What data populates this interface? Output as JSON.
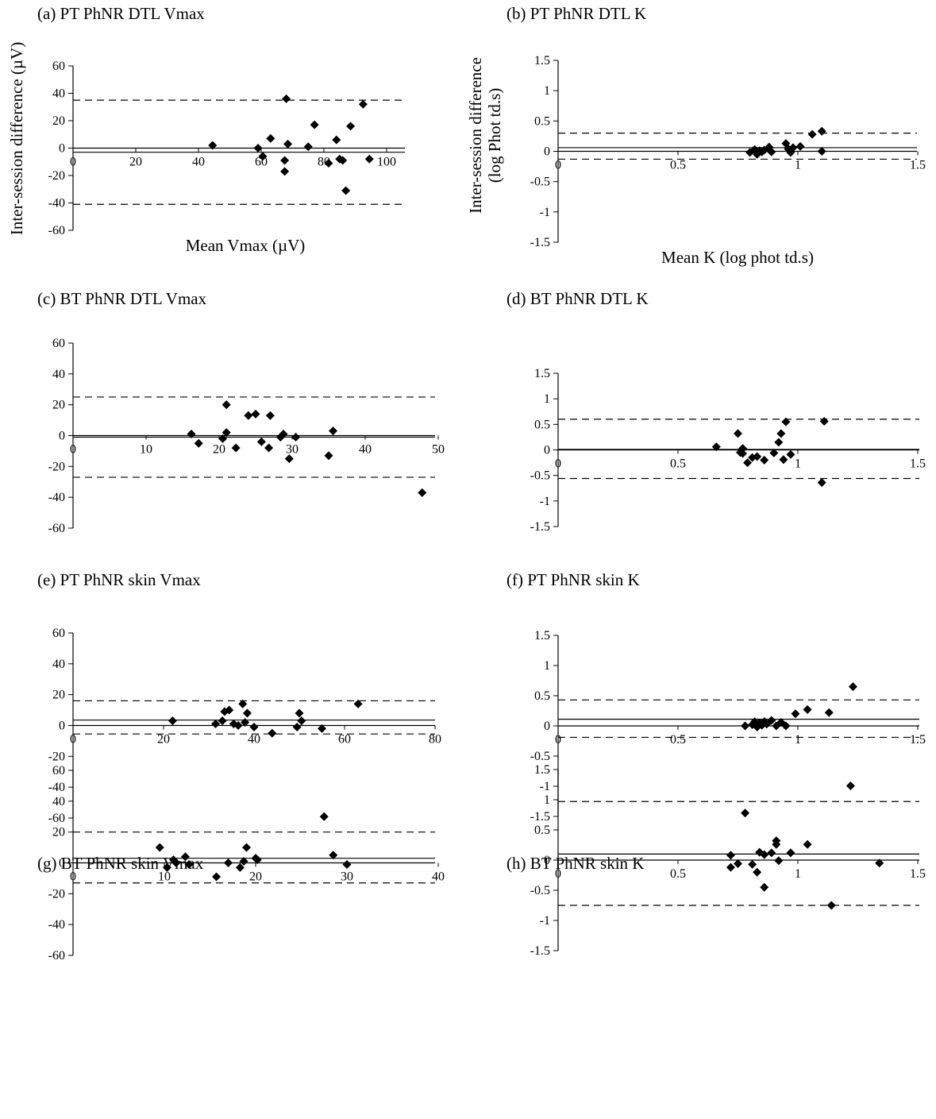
{
  "chart_data": [
    {
      "id": "a",
      "type": "scatter",
      "title": "(a) PT PhNR DTL Vmax",
      "xlabel": "Mean Vmax (µV)",
      "ylabel": "Inter-session difference (µV)",
      "xlim": [
        0,
        110
      ],
      "ylim": [
        -60,
        60
      ],
      "xticks": [
        0,
        20,
        40,
        60,
        80,
        100
      ],
      "yticks": [
        -60,
        -40,
        -20,
        0,
        20,
        40,
        60
      ],
      "x_tick_labels": [
        "0",
        "20",
        "40",
        "60",
        "80",
        "100"
      ],
      "y_tick_labels": [
        "-60",
        "-40",
        "-20",
        "0",
        "20",
        "40",
        "60"
      ],
      "mean_difference": -3,
      "limits_of_agreement": [
        -41,
        35
      ],
      "points": [
        [
          44.5,
          2
        ],
        [
          59,
          0
        ],
        [
          60.5,
          -6
        ],
        [
          63,
          7
        ],
        [
          67.5,
          -9
        ],
        [
          67.5,
          -17
        ],
        [
          68,
          36
        ],
        [
          68.5,
          3
        ],
        [
          75,
          1
        ],
        [
          77,
          17
        ],
        [
          81.5,
          -11
        ],
        [
          84,
          6
        ],
        [
          85,
          -8
        ],
        [
          86,
          -9
        ],
        [
          87,
          -31
        ],
        [
          88.5,
          16
        ],
        [
          92.5,
          32
        ],
        [
          94.5,
          -8
        ]
      ]
    },
    {
      "id": "b",
      "type": "scatter",
      "title": "(b) PT PhNR DTL K",
      "xlabel": "Mean K (log phot td.s)",
      "ylabel": "Inter-session difference (log Phot td.s)",
      "xlim": [
        0,
        1.5
      ],
      "ylim": [
        -1.5,
        1.5
      ],
      "xticks": [
        0,
        0.5,
        1,
        1.5
      ],
      "yticks": [
        -1.5,
        -1,
        -0.5,
        0,
        0.5,
        1,
        1.5
      ],
      "x_tick_labels": [
        "0",
        "0.5",
        "1",
        "1.5"
      ],
      "y_tick_labels": [
        "-1.5",
        "-1",
        "-0.5",
        "0",
        "0.5",
        "1",
        "1.5"
      ],
      "mean_difference": 0.06,
      "limits_of_agreement": [
        -0.13,
        0.3
      ],
      "points": [
        [
          0.8,
          -0.02
        ],
        [
          0.82,
          0.03
        ],
        [
          0.83,
          -0.05
        ],
        [
          0.84,
          0.01
        ],
        [
          0.85,
          -0.01
        ],
        [
          0.86,
          0.02
        ],
        [
          0.88,
          0.07
        ],
        [
          0.88,
          0.03
        ],
        [
          0.89,
          -0.01
        ],
        [
          0.95,
          0.13
        ],
        [
          0.96,
          0.04
        ],
        [
          0.97,
          -0.02
        ],
        [
          0.98,
          0.06
        ],
        [
          1.01,
          0.08
        ],
        [
          1.06,
          0.28
        ],
        [
          1.1,
          0.33
        ],
        [
          1.1,
          0.0
        ]
      ]
    },
    {
      "id": "c",
      "type": "scatter",
      "title": "(c) BT PhNR DTL Vmax",
      "xlabel": "",
      "ylabel": "",
      "xlim": [
        0,
        50
      ],
      "ylim": [
        -60,
        60
      ],
      "xticks": [
        0,
        10,
        20,
        30,
        40,
        50
      ],
      "yticks": [
        -60,
        -40,
        -20,
        0,
        20,
        40,
        60
      ],
      "x_tick_labels": [
        "0",
        "10",
        "20",
        "30",
        "40",
        "50"
      ],
      "y_tick_labels": [
        "-60",
        "-40",
        "-20",
        "0",
        "20",
        "40",
        "60"
      ],
      "mean_difference": -1,
      "limits_of_agreement": [
        -27,
        25
      ],
      "points": [
        [
          16.2,
          1
        ],
        [
          17.2,
          -5
        ],
        [
          20.5,
          -2
        ],
        [
          21,
          2
        ],
        [
          21,
          20
        ],
        [
          22.3,
          -8
        ],
        [
          24,
          13
        ],
        [
          25,
          14
        ],
        [
          25.8,
          -4
        ],
        [
          26.8,
          -8
        ],
        [
          27,
          13
        ],
        [
          28.4,
          -1
        ],
        [
          28.8,
          1
        ],
        [
          29.6,
          -15
        ],
        [
          30.5,
          -1
        ],
        [
          35,
          -13
        ],
        [
          35.6,
          3
        ],
        [
          47.8,
          -37
        ]
      ]
    },
    {
      "id": "d",
      "type": "scatter",
      "title": "(d) BT PhNR DTL K",
      "xlabel": "",
      "ylabel": "",
      "xlim": [
        0,
        1.5
      ],
      "ylim": [
        -1.5,
        1.5
      ],
      "xticks": [
        0,
        0.5,
        1,
        1.5
      ],
      "yticks": [
        -1.5,
        -1,
        -0.5,
        0,
        0.5,
        1,
        1.5
      ],
      "x_tick_labels": [
        "0",
        "0.5",
        "1",
        "1.5"
      ],
      "y_tick_labels": [
        "-1.5",
        "-1",
        "-0.5",
        "0",
        "0.5",
        "1",
        "1.5"
      ],
      "mean_difference": 0.01,
      "limits_of_agreement": [
        -0.56,
        0.6
      ],
      "points": [
        [
          0.66,
          0.06
        ],
        [
          0.75,
          0.32
        ],
        [
          0.76,
          -0.05
        ],
        [
          0.77,
          -0.07
        ],
        [
          0.77,
          0.03
        ],
        [
          0.79,
          -0.25
        ],
        [
          0.81,
          -0.15
        ],
        [
          0.83,
          -0.13
        ],
        [
          0.86,
          -0.2
        ],
        [
          0.9,
          -0.06
        ],
        [
          0.92,
          0.15
        ],
        [
          0.93,
          0.32
        ],
        [
          0.94,
          -0.19
        ],
        [
          0.95,
          0.55
        ],
        [
          0.97,
          -0.09
        ],
        [
          1.1,
          -0.64
        ],
        [
          1.11,
          0.56
        ]
      ]
    },
    {
      "id": "e",
      "type": "scatter",
      "title": "(e) PT PhNR skin Vmax",
      "xlabel": "",
      "ylabel": "",
      "xlim": [
        0,
        80
      ],
      "ylim": [
        -60,
        60
      ],
      "xticks": [
        0,
        20,
        40,
        60,
        80
      ],
      "yticks": [
        -60,
        -40,
        -20,
        0,
        20,
        40,
        60
      ],
      "x_tick_labels": [
        "0",
        "20",
        "40",
        "60",
        "80"
      ],
      "y_tick_labels": [
        "-60",
        "-40",
        "-20",
        "0",
        "20",
        "40",
        "60"
      ],
      "mean_difference": 3.5,
      "limits_of_agreement": [
        -5.5,
        16
      ],
      "points": [
        [
          22,
          3
        ],
        [
          31.5,
          1
        ],
        [
          33,
          3
        ],
        [
          33.5,
          9
        ],
        [
          34.5,
          10
        ],
        [
          35.5,
          1
        ],
        [
          36.5,
          0
        ],
        [
          37.5,
          14
        ],
        [
          38,
          2
        ],
        [
          38.5,
          8
        ],
        [
          40,
          -1
        ],
        [
          44,
          -5
        ],
        [
          49.5,
          -1
        ],
        [
          50,
          8
        ],
        [
          50.5,
          3
        ],
        [
          55,
          -2
        ],
        [
          63,
          14
        ]
      ]
    },
    {
      "id": "f",
      "type": "scatter",
      "title": "(f) PT PhNR skin K",
      "xlabel": "",
      "ylabel": "",
      "xlim": [
        0,
        1.5
      ],
      "ylim": [
        -1.5,
        1.5
      ],
      "xticks": [
        0,
        0.5,
        1,
        1.5
      ],
      "yticks": [
        -1.5,
        -1,
        -0.5,
        0,
        0.5,
        1,
        1.5
      ],
      "x_tick_labels": [
        "0",
        "0.5",
        "1",
        "1.5"
      ],
      "y_tick_labels": [
        "-1.5",
        "-1",
        "-0.5",
        "0",
        "0.5",
        "1",
        "1.5"
      ],
      "mean_difference": 0.11,
      "limits_of_agreement": [
        -0.19,
        0.43
      ],
      "points": [
        [
          0.78,
          0.0
        ],
        [
          0.81,
          0.02
        ],
        [
          0.82,
          0.07
        ],
        [
          0.83,
          -0.02
        ],
        [
          0.84,
          0.05
        ],
        [
          0.85,
          0.01
        ],
        [
          0.86,
          0.07
        ],
        [
          0.87,
          0.03
        ],
        [
          0.89,
          0.09
        ],
        [
          0.91,
          0.0
        ],
        [
          0.93,
          0.06
        ],
        [
          0.95,
          0.0
        ],
        [
          0.99,
          0.2
        ],
        [
          1.04,
          0.27
        ],
        [
          1.13,
          0.22
        ],
        [
          1.23,
          0.65
        ]
      ]
    },
    {
      "id": "g",
      "type": "scatter",
      "title": "(g) BT PhNR skin Vmax",
      "xlabel": "",
      "ylabel": "",
      "xlim": [
        0,
        40
      ],
      "ylim": [
        -60,
        60
      ],
      "xticks": [
        0,
        10,
        20,
        30,
        40
      ],
      "yticks": [
        -60,
        -40,
        -20,
        0,
        20,
        40,
        60
      ],
      "x_tick_labels": [
        "0",
        "10",
        "20",
        "30",
        "40"
      ],
      "y_tick_labels": [
        "-60",
        "-40",
        "-20",
        "0",
        "20",
        "40",
        "60"
      ],
      "mean_difference": 3,
      "limits_of_agreement": [
        -13,
        20
      ],
      "points": [
        [
          9.5,
          10
        ],
        [
          10.3,
          -3
        ],
        [
          11,
          2
        ],
        [
          11.3,
          0
        ],
        [
          12.3,
          4
        ],
        [
          12.7,
          -1
        ],
        [
          15.7,
          -9
        ],
        [
          17,
          0
        ],
        [
          18.3,
          -3
        ],
        [
          18.7,
          1
        ],
        [
          19,
          10
        ],
        [
          20,
          3
        ],
        [
          20.2,
          2
        ],
        [
          27.5,
          30
        ],
        [
          28.5,
          5
        ],
        [
          30,
          -1
        ]
      ]
    },
    {
      "id": "h",
      "type": "scatter",
      "title": "(h) BT PhNR skin K",
      "xlabel": "",
      "ylabel": "",
      "xlim": [
        0,
        1.5
      ],
      "ylim": [
        -1.5,
        1.5
      ],
      "xticks": [
        0,
        0.5,
        1,
        1.5
      ],
      "yticks": [
        -1.5,
        -1,
        -0.5,
        0,
        0.5,
        1,
        1.5
      ],
      "x_tick_labels": [
        "0",
        "0.5",
        "1",
        "1.5"
      ],
      "y_tick_labels": [
        "-1.5",
        "-1",
        "-0.5",
        "0",
        "0.5",
        "1",
        "1.5"
      ],
      "mean_difference": 0.1,
      "limits_of_agreement": [
        -0.75,
        0.97
      ],
      "points": [
        [
          0.72,
          0.08
        ],
        [
          0.72,
          -0.12
        ],
        [
          0.75,
          -0.06
        ],
        [
          0.78,
          0.78
        ],
        [
          0.81,
          -0.07
        ],
        [
          0.83,
          -0.2
        ],
        [
          0.84,
          0.13
        ],
        [
          0.86,
          -0.45
        ],
        [
          0.86,
          0.09
        ],
        [
          0.89,
          0.12
        ],
        [
          0.91,
          0.26
        ],
        [
          0.91,
          0.32
        ],
        [
          0.92,
          -0.01
        ],
        [
          0.97,
          0.12
        ],
        [
          1.04,
          0.26
        ],
        [
          1.14,
          -0.75
        ],
        [
          1.22,
          1.23
        ],
        [
          1.34,
          -0.05
        ]
      ]
    }
  ]
}
